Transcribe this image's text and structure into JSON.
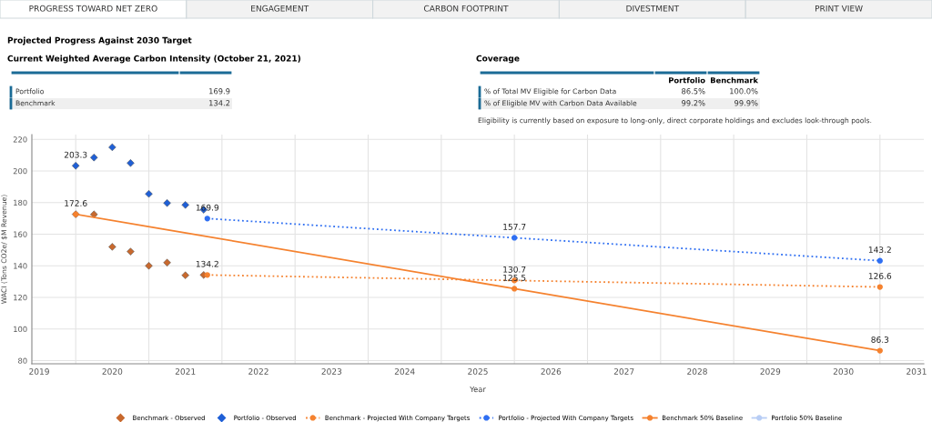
{
  "chart_data": [
    {
      "type": "other",
      "annotations": [
        "PROGRESS TOWARD NET ZERO",
        "ENGAGEMENT",
        "CARBON FOOTPRINT",
        "DIVESTMENT",
        "PRINT VIEW"
      ]
    },
    {
      "type": "other",
      "title": "Projected Progress Against 2030 Target",
      "subtitle": "Current Weighted Average Carbon Intensity (October 21, 2021)",
      "categories": [
        "Portfolio",
        "Benchmark"
      ],
      "series": [
        {
          "values": [
            169.9,
            134.2
          ]
        }
      ],
      "data_labels": true
    },
    {
      "type": "other",
      "title": "Coverage",
      "categories": [
        "% of Total MV Eligible for Carbon Data",
        "% of Eligible MV with Carbon Data Available"
      ],
      "series": [
        {
          "name": "Portfolio",
          "values": [
            86.5,
            99.2
          ],
          "value_labels": [
            "86.5%",
            "99.2%"
          ]
        },
        {
          "name": "Benchmark",
          "values": [
            100.0,
            99.9
          ],
          "value_labels": [
            "100.0%",
            "99.9%"
          ]
        }
      ],
      "annotations": [
        "Eligibility is currently based on exposure to long-only, direct corporate holdings and excludes look-through pools."
      ]
    },
    {
      "type": "line",
      "xlabel": "Year",
      "ylabel": "WACI (Tons CO2e/ $M Revenue)",
      "xlim": [
        2018.9,
        2031.1
      ],
      "ylim": [
        78,
        223
      ],
      "xticks": [
        2019,
        2020,
        2021,
        2022,
        2023,
        2024,
        2025,
        2026,
        2027,
        2028,
        2029,
        2030,
        2031,
        {
          "value": 2019.5,
          "label": null
        },
        {
          "value": 2020.5,
          "label": null
        },
        {
          "value": 2021.5,
          "label": null
        },
        {
          "value": 2022.5,
          "label": null
        },
        {
          "value": 2023.5,
          "label": null
        },
        {
          "value": 2024.5,
          "label": null
        },
        {
          "value": 2025.5,
          "label": null
        },
        {
          "value": 2026.5,
          "label": null
        },
        {
          "value": 2027.5,
          "label": null
        },
        {
          "value": 2028.5,
          "label": null
        },
        {
          "value": 2029.5,
          "label": null
        },
        {
          "value": 2030.5,
          "label": null
        }
      ],
      "yticks": [
        80,
        100,
        120,
        140,
        160,
        180,
        200,
        220
      ],
      "grid": true,
      "legend": "bottom",
      "series": [
        {
          "name": "Benchmark - Observed",
          "type": "scatter",
          "marker": "diamond",
          "color": "#c8692e",
          "x": [
            2019.5,
            2019.75,
            2020,
            2020.25,
            2020.5,
            2020.75,
            2021,
            2021.25
          ],
          "values": [
            172.6,
            172.5,
            152,
            149,
            140,
            142,
            134,
            134.2
          ],
          "value_labels": [
            "172.6",
            null,
            null,
            null,
            null,
            null,
            null,
            null
          ]
        },
        {
          "name": "Portfolio - Observed",
          "type": "scatter",
          "marker": "diamond",
          "color": "#1f5fd6",
          "x": [
            2019.5,
            2019.75,
            2020,
            2020.25,
            2020.5,
            2020.75,
            2021,
            2021.25
          ],
          "values": [
            203.3,
            208.5,
            215,
            205,
            185.5,
            179.7,
            178.5,
            175.5
          ],
          "value_labels": [
            "203.3",
            null,
            null,
            null,
            null,
            null,
            null,
            null
          ]
        },
        {
          "name": "Benchmark - Projected With Company Targets",
          "type": "line",
          "marker": "circle",
          "line_style": "dotted",
          "color": "#f5822f",
          "x": [
            2021.3,
            2025.5,
            2030.5
          ],
          "values": [
            134.2,
            130.7,
            126.6
          ],
          "value_labels": [
            "134.2",
            "130.7",
            "126.6"
          ]
        },
        {
          "name": "Portfolio - Projected With Company Targets",
          "type": "line",
          "marker": "circle",
          "line_style": "dotted",
          "color": "#2f6ff2",
          "x": [
            2021.3,
            2025.5,
            2030.5
          ],
          "values": [
            169.9,
            157.7,
            143.2
          ],
          "value_labels": [
            "169.9",
            "157.7",
            "143.2"
          ]
        },
        {
          "name": "Benchmark 50% Baseline",
          "type": "line",
          "marker": "circle",
          "line_style": "solid",
          "color": "#f5822f",
          "x": [
            2019.5,
            2025.5,
            2030.5
          ],
          "values": [
            172.6,
            125.5,
            86.3
          ],
          "value_labels": [
            null,
            "125.5",
            "86.3"
          ]
        },
        {
          "name": "Portfolio 50% Baseline",
          "type": "line",
          "marker": "circle",
          "line_style": "solid",
          "color": "#b8cdf5"
        }
      ]
    }
  ]
}
